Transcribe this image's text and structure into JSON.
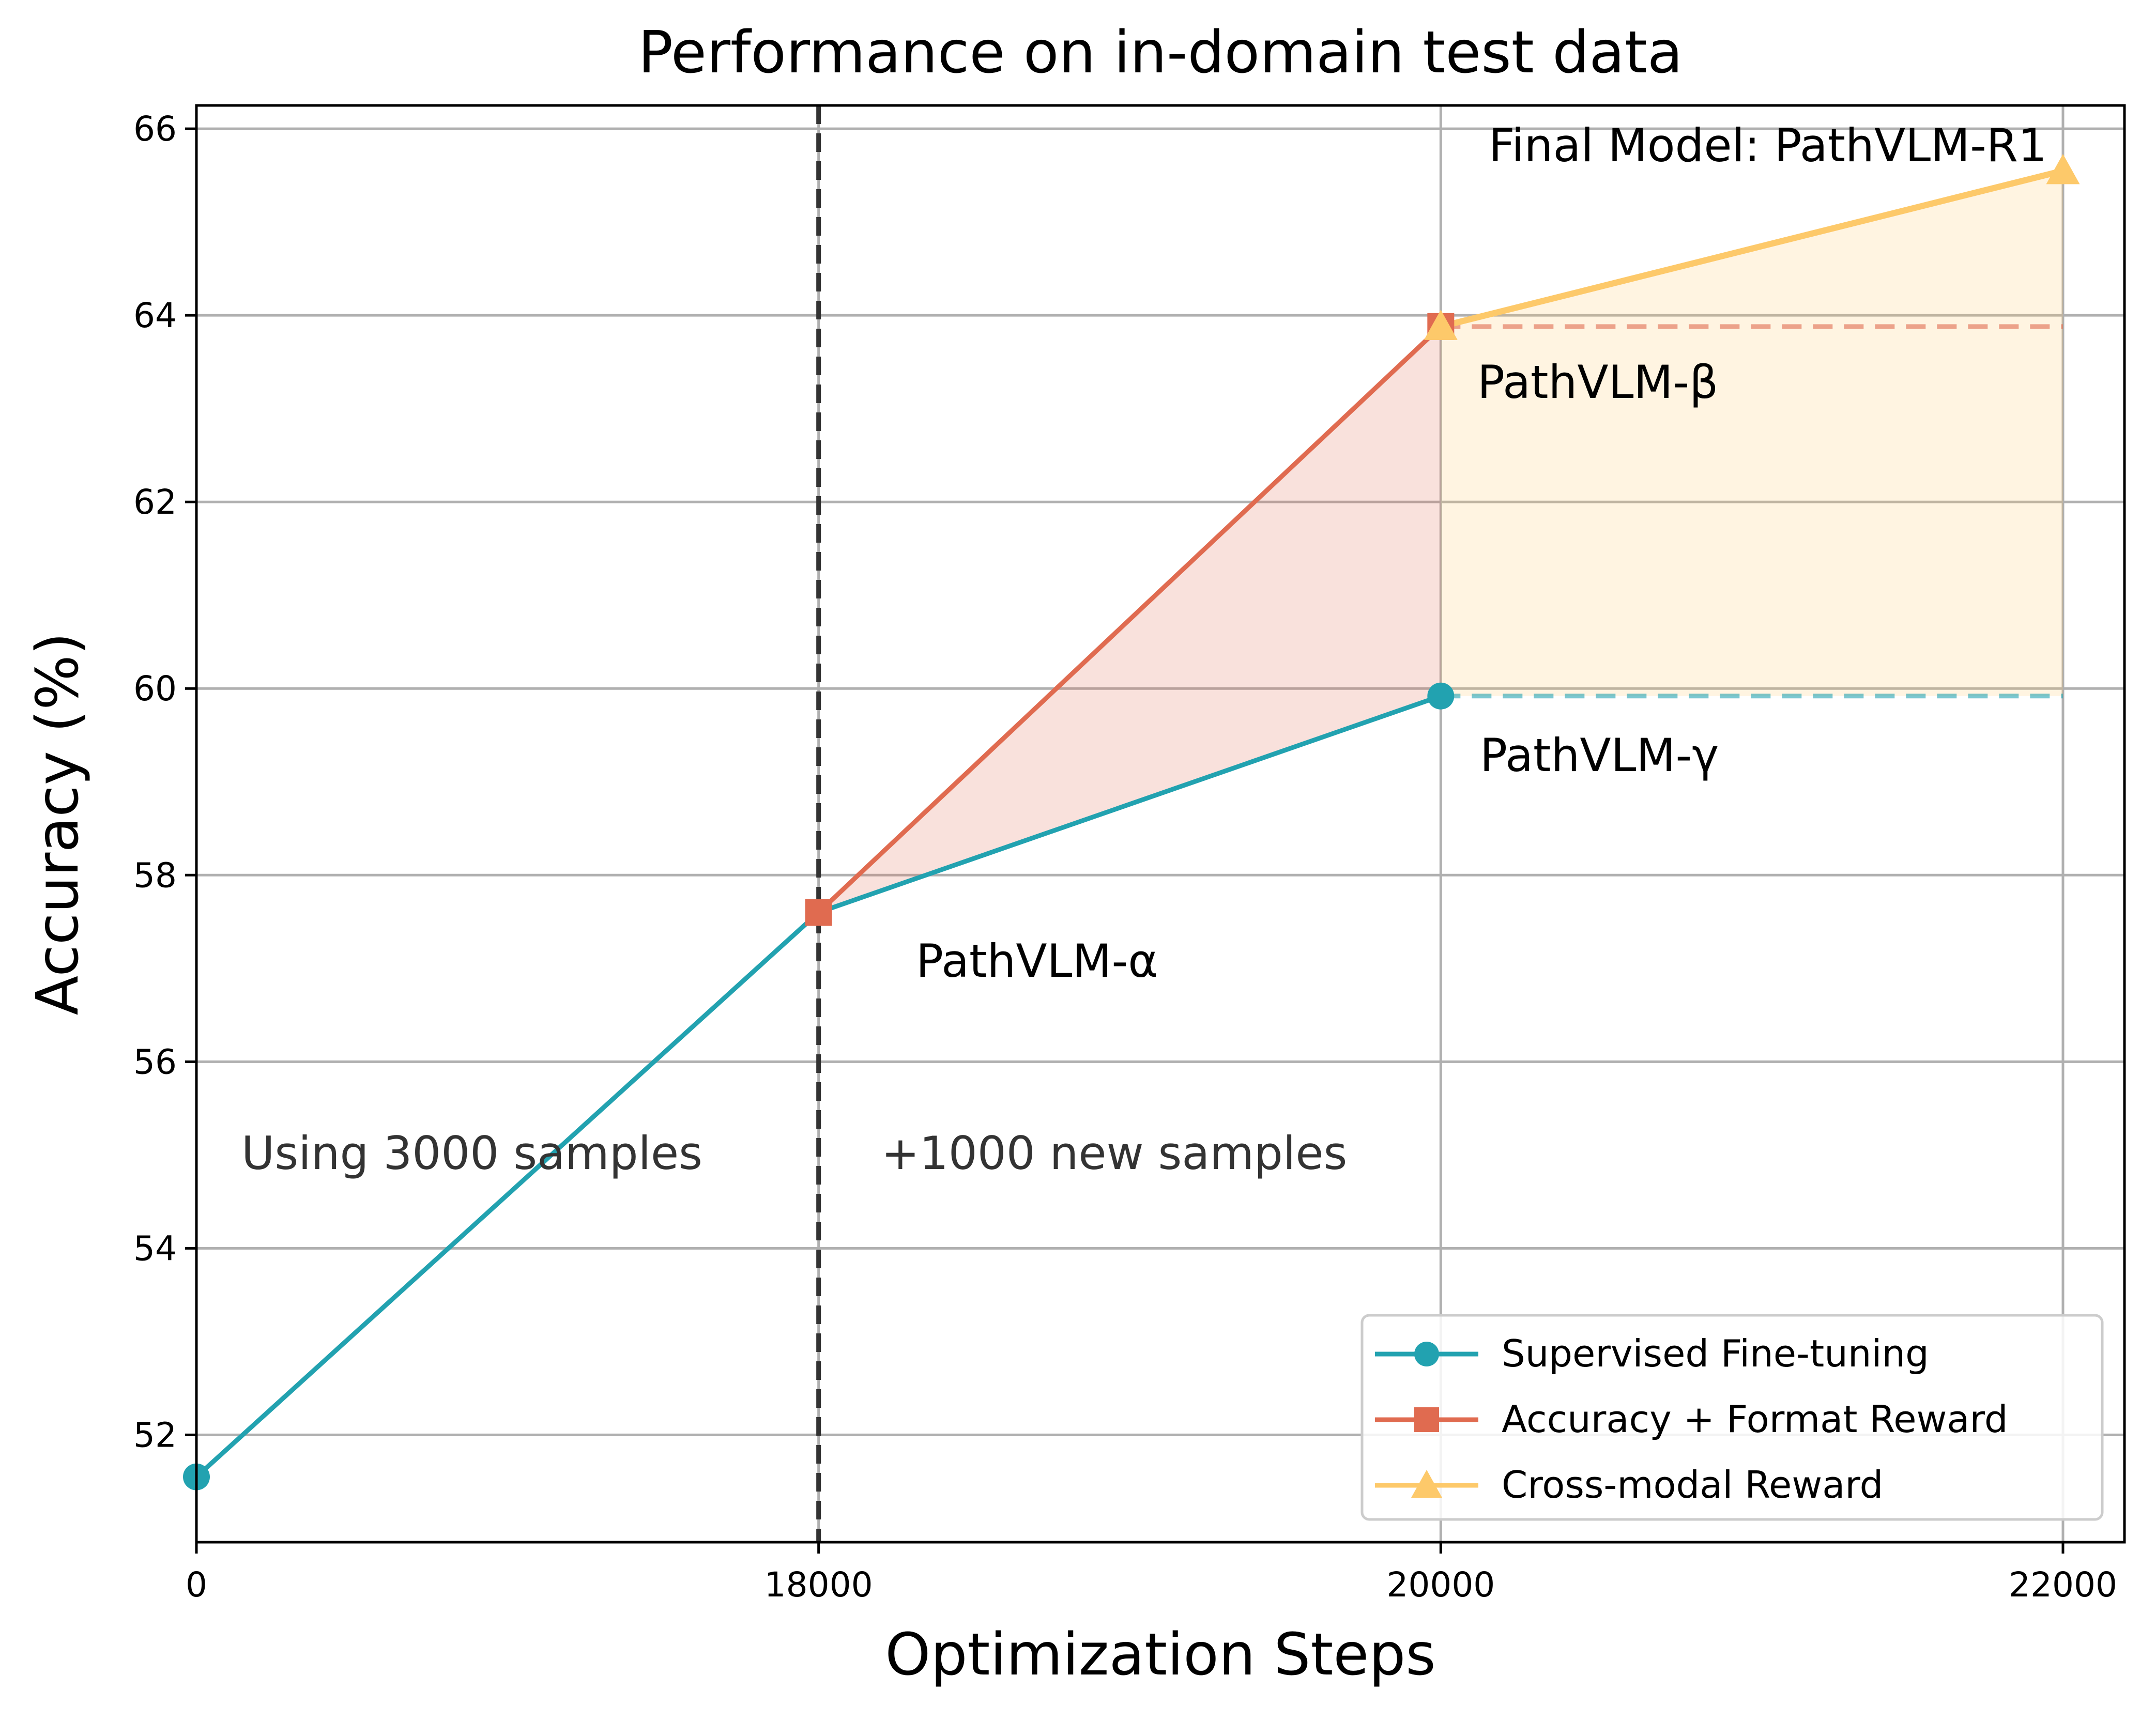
{
  "chart_data": {
    "type": "line",
    "title": "Performance on in-domain test data",
    "xlabel": "Optimization Steps",
    "ylabel": "Accuracy (%)",
    "ylim": [
      50.85,
      66.25
    ],
    "grid": true,
    "x_positions": [
      0,
      1,
      2,
      3
    ],
    "x_tick_labels": [
      "0",
      "18000",
      "20000",
      "22000"
    ],
    "y_ticks": [
      52,
      54,
      56,
      58,
      60,
      62,
      64,
      66
    ],
    "y_tick_labels": [
      "52",
      "54",
      "56",
      "58",
      "60",
      "62",
      "64",
      "66"
    ],
    "series": [
      {
        "name": "Supervised Fine-tuning",
        "color": "#22a2b0",
        "marker": "circle",
        "x": [
          0,
          1,
          2
        ],
        "values": [
          51.55,
          57.6,
          59.92
        ]
      },
      {
        "name": "Accuracy + Format Reward",
        "color": "#e06b50",
        "marker": "square",
        "x": [
          1,
          2
        ],
        "values": [
          57.6,
          63.88
        ]
      },
      {
        "name": "Cross-modal Reward",
        "color": "#fdc96a",
        "marker": "triangle",
        "x": [
          2,
          3
        ],
        "values": [
          63.88,
          65.55
        ]
      }
    ],
    "reference_lines": [
      {
        "value": 63.88,
        "color": "#e06b50",
        "from_x": 2,
        "to_x": 3
      },
      {
        "value": 59.92,
        "color": "#22a2b0",
        "from_x": 2,
        "to_x": 3
      }
    ],
    "divider_x": 1,
    "annotations": {
      "alpha": "PathVLM-α",
      "beta": "PathVLM-β",
      "gamma": "PathVLM-γ",
      "final": "Final Model: PathVLM-R1",
      "left_region": "Using 3000 samples",
      "right_region": "+1000 new samples"
    },
    "legend_position": "lower-right"
  }
}
